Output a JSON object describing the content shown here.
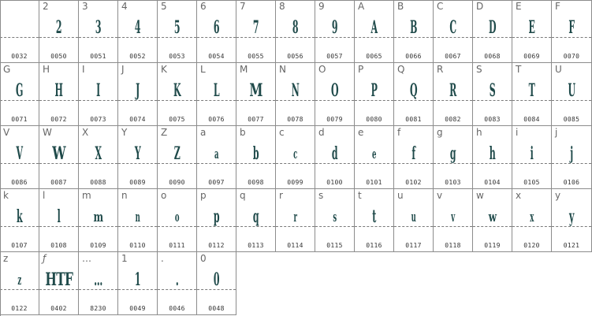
{
  "colors": {
    "glyph": "#1f4a4a",
    "grid": "#8c8c8c",
    "label": "#666666"
  },
  "cells": [
    {
      "label": "",
      "glyph": "",
      "code": "0032"
    },
    {
      "label": "2",
      "glyph": "2",
      "code": "0050"
    },
    {
      "label": "3",
      "glyph": "3",
      "code": "0051"
    },
    {
      "label": "4",
      "glyph": "4",
      "code": "0052"
    },
    {
      "label": "5",
      "glyph": "5",
      "code": "0053"
    },
    {
      "label": "6",
      "glyph": "6",
      "code": "0054"
    },
    {
      "label": "7",
      "glyph": "7",
      "code": "0055"
    },
    {
      "label": "8",
      "glyph": "8",
      "code": "0056"
    },
    {
      "label": "9",
      "glyph": "9",
      "code": "0057"
    },
    {
      "label": "A",
      "glyph": "A",
      "code": "0065"
    },
    {
      "label": "B",
      "glyph": "B",
      "code": "0066"
    },
    {
      "label": "C",
      "glyph": "C",
      "code": "0067"
    },
    {
      "label": "D",
      "glyph": "D",
      "code": "0068"
    },
    {
      "label": "E",
      "glyph": "E",
      "code": "0069"
    },
    {
      "label": "F",
      "glyph": "F",
      "code": "0070"
    },
    {
      "label": "G",
      "glyph": "G",
      "code": "0071"
    },
    {
      "label": "H",
      "glyph": "H",
      "code": "0072"
    },
    {
      "label": "I",
      "glyph": "I",
      "code": "0073"
    },
    {
      "label": "J",
      "glyph": "J",
      "code": "0074"
    },
    {
      "label": "K",
      "glyph": "K",
      "code": "0075"
    },
    {
      "label": "L",
      "glyph": "L",
      "code": "0076"
    },
    {
      "label": "M",
      "glyph": "M",
      "code": "0077"
    },
    {
      "label": "N",
      "glyph": "N",
      "code": "0078"
    },
    {
      "label": "O",
      "glyph": "O",
      "code": "0079"
    },
    {
      "label": "P",
      "glyph": "P",
      "code": "0080"
    },
    {
      "label": "Q",
      "glyph": "Q",
      "code": "0081"
    },
    {
      "label": "R",
      "glyph": "R",
      "code": "0082"
    },
    {
      "label": "S",
      "glyph": "S",
      "code": "0083"
    },
    {
      "label": "T",
      "glyph": "T",
      "code": "0084"
    },
    {
      "label": "U",
      "glyph": "U",
      "code": "0085"
    },
    {
      "label": "V",
      "glyph": "V",
      "code": "0086"
    },
    {
      "label": "W",
      "glyph": "W",
      "code": "0087"
    },
    {
      "label": "X",
      "glyph": "X",
      "code": "0088"
    },
    {
      "label": "Y",
      "glyph": "Y",
      "code": "0089"
    },
    {
      "label": "Z",
      "glyph": "Z",
      "code": "0090"
    },
    {
      "label": "a",
      "glyph": "a",
      "code": "0097"
    },
    {
      "label": "b",
      "glyph": "b",
      "code": "0098"
    },
    {
      "label": "c",
      "glyph": "c",
      "code": "0099"
    },
    {
      "label": "d",
      "glyph": "d",
      "code": "0100"
    },
    {
      "label": "e",
      "glyph": "e",
      "code": "0101"
    },
    {
      "label": "f",
      "glyph": "f",
      "code": "0102"
    },
    {
      "label": "g",
      "glyph": "g",
      "code": "0103"
    },
    {
      "label": "h",
      "glyph": "h",
      "code": "0104"
    },
    {
      "label": "i",
      "glyph": "i",
      "code": "0105"
    },
    {
      "label": "j",
      "glyph": "j",
      "code": "0106"
    },
    {
      "label": "k",
      "glyph": "k",
      "code": "0107"
    },
    {
      "label": "l",
      "glyph": "l",
      "code": "0108"
    },
    {
      "label": "m",
      "glyph": "m",
      "code": "0109"
    },
    {
      "label": "n",
      "glyph": "n",
      "code": "0110"
    },
    {
      "label": "o",
      "glyph": "o",
      "code": "0111"
    },
    {
      "label": "p",
      "glyph": "p",
      "code": "0112"
    },
    {
      "label": "q",
      "glyph": "q",
      "code": "0113"
    },
    {
      "label": "r",
      "glyph": "r",
      "code": "0114"
    },
    {
      "label": "s",
      "glyph": "s",
      "code": "0115"
    },
    {
      "label": "t",
      "glyph": "t",
      "code": "0116"
    },
    {
      "label": "u",
      "glyph": "u",
      "code": "0117"
    },
    {
      "label": "v",
      "glyph": "v",
      "code": "0118"
    },
    {
      "label": "w",
      "glyph": "w",
      "code": "0119"
    },
    {
      "label": "x",
      "glyph": "x",
      "code": "0120"
    },
    {
      "label": "y",
      "glyph": "y",
      "code": "0121"
    },
    {
      "label": "z",
      "glyph": "z",
      "code": "0122"
    },
    {
      "label": "ƒ",
      "glyph": "HTF",
      "code": "0402"
    },
    {
      "label": "…",
      "glyph": "…",
      "code": "8230"
    },
    {
      "label": "1",
      "glyph": "1",
      "code": "0049"
    },
    {
      "label": ".",
      "glyph": ".",
      "code": "0046"
    },
    {
      "label": "0",
      "glyph": "0",
      "code": "0048"
    }
  ]
}
